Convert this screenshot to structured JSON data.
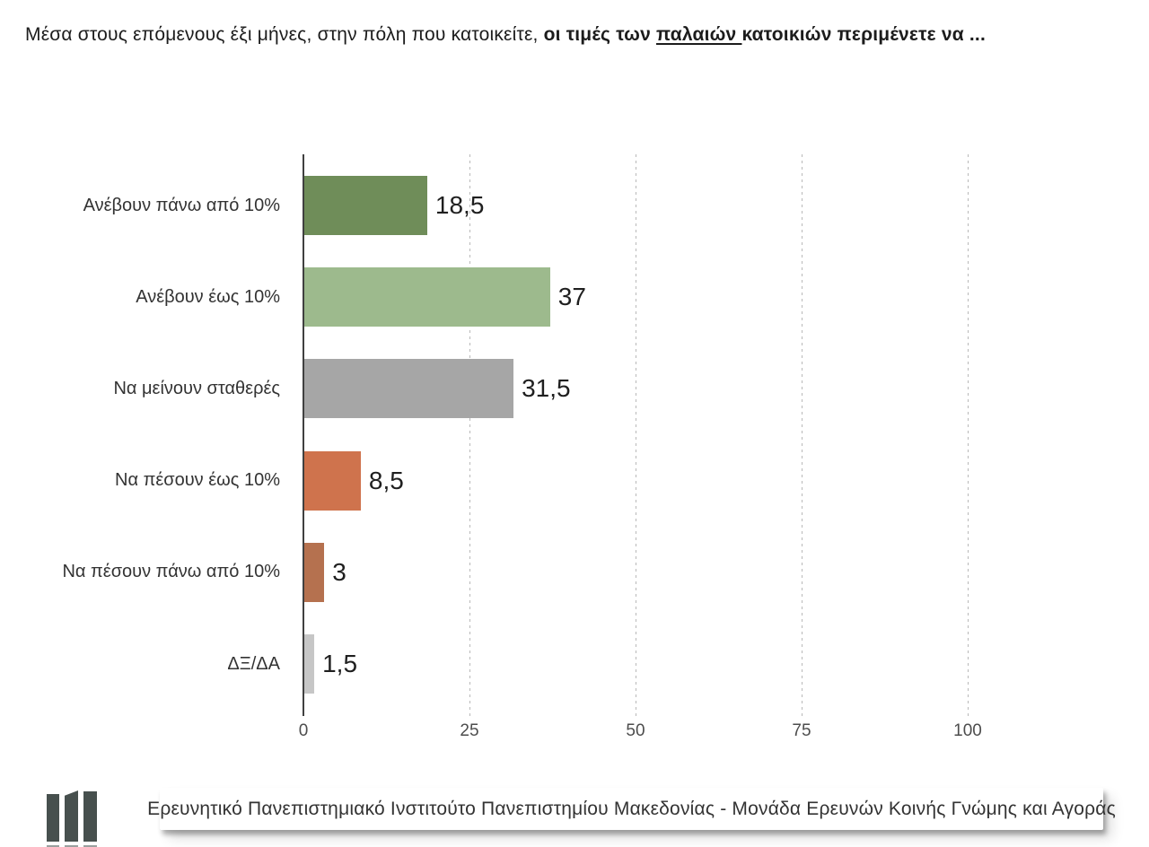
{
  "title": {
    "prefix": "Μέσα στους επόμενους έξι μήνες, στην πόλη που κατοικείτε, ",
    "bold_lead": "οι τιμές των ",
    "underlined": "παλαιών ",
    "bold_tail": "κατοικιών περιμένετε να ..."
  },
  "chart_data": {
    "type": "bar",
    "orientation": "horizontal",
    "title": "Μέσα στους επόμενους έξι μήνες, στην πόλη που κατοικείτε, οι τιμές των παλαιών κατοικιών περιμένετε να ...",
    "categories": [
      "Ανέβουν πάνω από 10%",
      "Ανέβουν έως 10%",
      "Να μείνουν σταθερές",
      "Να πέσουν έως 10%",
      "Να πέσουν πάνω από 10%",
      "ΔΞ/ΔΑ"
    ],
    "values": [
      18.5,
      37,
      31.5,
      8.5,
      3,
      1.5
    ],
    "value_labels": [
      "18,5",
      "37",
      "31,5",
      "8,5",
      "3",
      "1,5"
    ],
    "bar_colors": [
      "#6f8d59",
      "#9dba8d",
      "#a6a6a6",
      "#cf734d",
      "#b5714f",
      "#c6c6c6"
    ],
    "xlabel": "",
    "ylabel": "",
    "xlim": [
      0,
      100
    ],
    "x_ticks": [
      0,
      25,
      50,
      75,
      100
    ],
    "x_tick_labels": [
      "0",
      "25",
      "50",
      "75",
      "100"
    ],
    "grid": "vertical dashed gridlines",
    "legend": "none"
  },
  "colors": {
    "axis": "#404040",
    "gridline": "#b9b9b9",
    "logo_bars": "#47504e"
  },
  "footer": {
    "text": "Ερευνητικό Πανεπιστημιακό Ινστιτούτο Πανεπιστημίου Μακεδονίας - Μονάδα Ερευνών Κοινής Γνώμης και Αγοράς",
    "logo": "three-pillars-logo"
  }
}
